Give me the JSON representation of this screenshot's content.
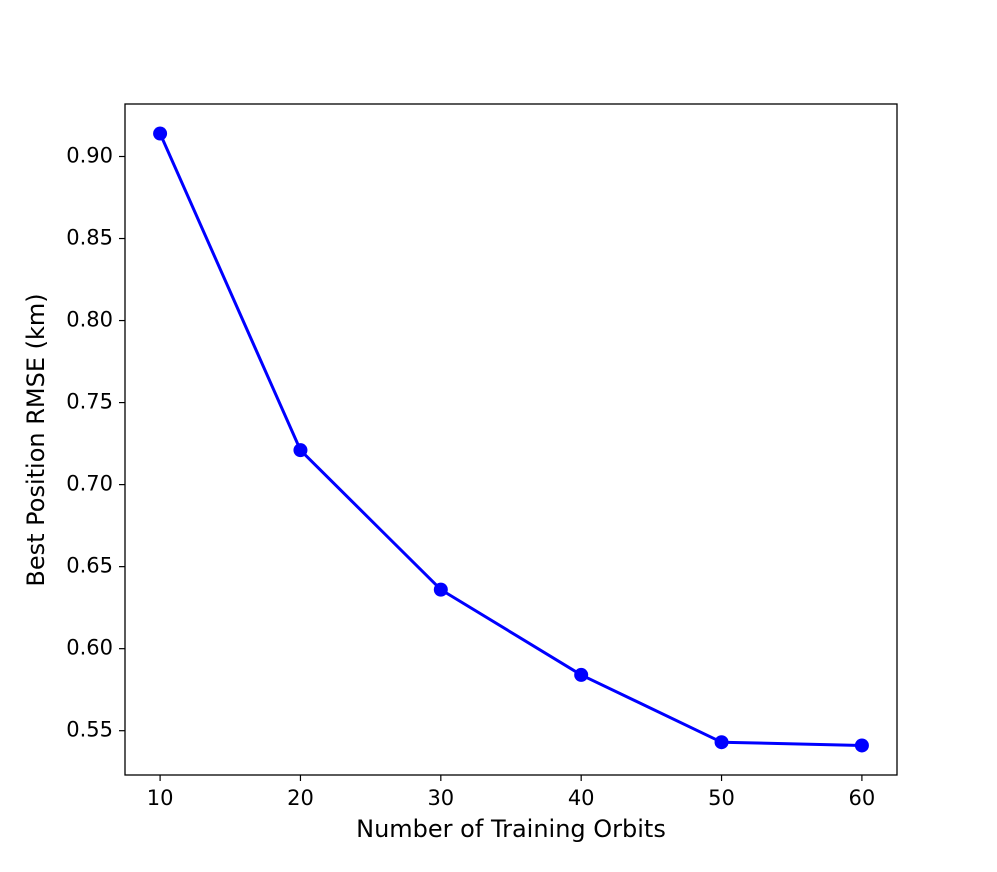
{
  "chart_data": {
    "type": "line",
    "x_label": "Number of Training Orbits",
    "y_label": "Best Position RMSE (km)",
    "x": [
      10,
      20,
      30,
      40,
      50,
      60
    ],
    "values": [
      0.914,
      0.721,
      0.636,
      0.584,
      0.543,
      0.541
    ],
    "color": "#0000ff",
    "xlim": [
      7.5,
      62.5
    ],
    "ylim": [
      0.523,
      0.932
    ],
    "xticks": [
      10,
      20,
      30,
      40,
      50,
      60
    ],
    "yticks": [
      {
        "value": 0.55,
        "label": "0.55"
      },
      {
        "value": 0.6,
        "label": "0.60"
      },
      {
        "value": 0.65,
        "label": "0.65"
      },
      {
        "value": 0.7,
        "label": "0.70"
      },
      {
        "value": 0.75,
        "label": "0.75"
      },
      {
        "value": 0.8,
        "label": "0.80"
      },
      {
        "value": 0.85,
        "label": "0.85"
      },
      {
        "value": 0.9,
        "label": "0.90"
      }
    ],
    "grid": false
  }
}
